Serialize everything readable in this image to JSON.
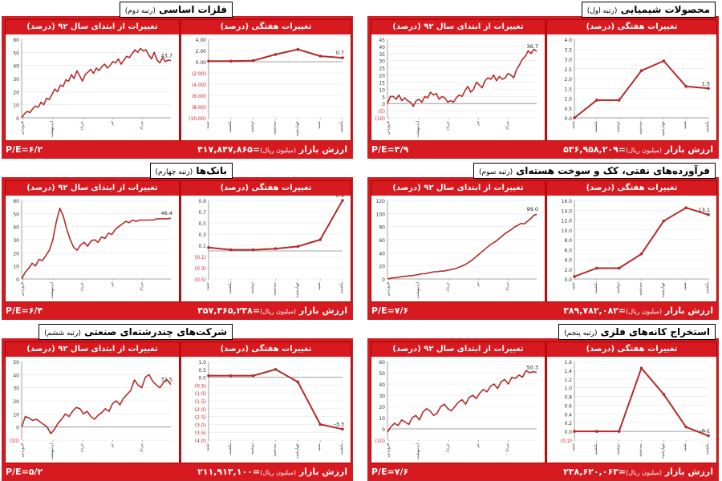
{
  "labels": {
    "ytd_header": "تغییرات از ابتدای سال ۹۲ (درصد)",
    "weekly_header": "تغییرات هفتگی (درصد)",
    "market_value_label": "ارزش بازار",
    "market_value_unit": "(میلیون ریال)",
    "months": [
      "فروردین",
      "اردیبهشت",
      "خرداد",
      "تیر",
      "مرداد"
    ],
    "weekdays": [
      "شنبه",
      "یکشنبه",
      "دوشنبه",
      "سه‌شنبه",
      "چهارشنبه"
    ]
  },
  "colors": {
    "accent": "#d71920",
    "line": "#b52a2a",
    "negative_tick": "#d71920"
  },
  "chart_data": [
    {
      "id": "chemical",
      "title": "محصولات شیمیایی",
      "rank": "(رتبه اول)",
      "pe": "P/E=۴/۹",
      "market_value": "۵۳۶,۹۵۸,۲۰۹",
      "ytd": {
        "type": "line",
        "ylim": [
          -10,
          45
        ],
        "yticks": [
          -10,
          -5,
          0,
          5,
          10,
          15,
          20,
          25,
          30,
          35,
          40,
          45
        ],
        "ytick_labels": [
          "(10)",
          "(5)",
          "0",
          "5",
          "10",
          "15",
          "20",
          "25",
          "30",
          "35",
          "40",
          "45"
        ],
        "values": [
          0,
          5,
          5,
          3,
          6,
          2,
          4,
          2,
          1,
          -2,
          2,
          3,
          1,
          5,
          4,
          8,
          6,
          7,
          3,
          5,
          4,
          1,
          2,
          1,
          4,
          6,
          5,
          9,
          12,
          8,
          10,
          15,
          13,
          11,
          16,
          18,
          17,
          20,
          16,
          19,
          17,
          18,
          21,
          20,
          18,
          24,
          27,
          31,
          33,
          37,
          35,
          38,
          36.7
        ],
        "end_label": "36.7"
      },
      "weekly": {
        "type": "line",
        "ylim": [
          0,
          4.0
        ],
        "yticks": [
          0,
          0.5,
          1.0,
          1.5,
          2.0,
          2.5,
          3.0,
          3.5,
          4.0
        ],
        "ytick_labels": [
          "0.0",
          "0.5",
          "1.0",
          "1.5",
          "2.0",
          "2.5",
          "3.0",
          "3.5",
          "4.0"
        ],
        "values": [
          0,
          0.9,
          0.9,
          2.4,
          2.9,
          1.6,
          1.5
        ],
        "end_label": "1.5"
      }
    },
    {
      "id": "basic-metals",
      "title": "فلزات اساسی",
      "rank": "(رتبه دوم)",
      "pe": "P/E=۶/۲",
      "market_value": "۴۱۷,۸۴۷,۸۶۵",
      "ytd": {
        "type": "line",
        "ylim": [
          0,
          60
        ],
        "yticks": [
          0,
          10,
          20,
          30,
          40,
          50,
          60
        ],
        "ytick_labels": [
          "0",
          "10",
          "20",
          "30",
          "40",
          "50",
          "60"
        ],
        "values": [
          0,
          3,
          5,
          4,
          7,
          9,
          8,
          12,
          10,
          15,
          14,
          18,
          22,
          20,
          25,
          24,
          29,
          28,
          33,
          30,
          36,
          32,
          28,
          33,
          35,
          37,
          34,
          38,
          36,
          39,
          41,
          38,
          40,
          43,
          42,
          45,
          41,
          44,
          47,
          46,
          49,
          52,
          50,
          53,
          51,
          52,
          48,
          45,
          50,
          44,
          42,
          46,
          43,
          44,
          43.7
        ],
        "end_label": "43.7"
      },
      "weekly": {
        "type": "line",
        "ylim": [
          -10,
          4
        ],
        "yticks": [
          -10,
          -8,
          -6,
          -4,
          -2,
          0,
          2,
          4
        ],
        "ytick_labels": [
          "(10.00)",
          "(8.00)",
          "(6.00)",
          "(4.00)",
          "(2.00)",
          "0.00",
          "2.00",
          "4.00"
        ],
        "values": [
          0.1,
          0.1,
          0.2,
          1.3,
          2.2,
          1.0,
          0.7
        ],
        "end_label": "0.7"
      }
    },
    {
      "id": "petroleum",
      "title": "فرآورده‌های نفتی، کک و سوخت هسته‌ای",
      "rank": "(رتبه سوم)",
      "pe": "P/E=۷/۶",
      "market_value": "۳۸۹,۷۸۲,۰۸۲",
      "ytd": {
        "type": "line",
        "ylim": [
          0,
          120
        ],
        "yticks": [
          0,
          20,
          40,
          60,
          80,
          100,
          120
        ],
        "ytick_labels": [
          "0",
          "20",
          "40",
          "60",
          "80",
          "100",
          "120"
        ],
        "values": [
          0,
          1,
          2,
          2,
          3,
          4,
          4,
          5,
          5,
          6,
          7,
          8,
          8,
          9,
          10,
          11,
          11,
          12,
          12,
          13,
          14,
          15,
          16,
          18,
          20,
          22,
          25,
          28,
          32,
          36,
          40,
          44,
          48,
          52,
          55,
          58,
          62,
          66,
          70,
          73,
          76,
          80,
          82,
          85,
          84,
          88,
          92,
          97,
          99.0
        ],
        "end_label": "99.0"
      },
      "weekly": {
        "type": "line",
        "ylim": [
          0,
          16
        ],
        "yticks": [
          0,
          2,
          4,
          6,
          8,
          10,
          12,
          14,
          16
        ],
        "ytick_labels": [
          "0.0",
          "2.0",
          "4.0",
          "6.0",
          "8.0",
          "10.0",
          "12.0",
          "14.0",
          "16.0"
        ],
        "values": [
          0.5,
          2.2,
          2.2,
          5.1,
          11.8,
          14.5,
          13.1
        ],
        "end_label": "13.1"
      }
    },
    {
      "id": "banks",
      "title": "بانک‌ها",
      "rank": "(رتبه چهارم)",
      "pe": "P/E=۶/۴",
      "market_value": "۳۵۷,۳۶۵,۲۳۸",
      "ytd": {
        "type": "line",
        "ylim": [
          0,
          60
        ],
        "yticks": [
          0,
          10,
          20,
          30,
          40,
          50,
          60
        ],
        "ytick_labels": [
          "0",
          "10",
          "20",
          "30",
          "40",
          "50",
          "60"
        ],
        "values": [
          0,
          5,
          8,
          12,
          10,
          15,
          14,
          18,
          22,
          30,
          44,
          54,
          48,
          38,
          30,
          24,
          22,
          26,
          28,
          25,
          29,
          30,
          28,
          32,
          31,
          35,
          34,
          38,
          40,
          42,
          44,
          43,
          45,
          44,
          45,
          45,
          45,
          45,
          45,
          46,
          46,
          46,
          46,
          46.4
        ],
        "end_label": "46.4"
      },
      "weekly": {
        "type": "line",
        "ylim": [
          -0.5,
          0.9
        ],
        "yticks": [
          -0.5,
          -0.3,
          -0.1,
          0.1,
          0.3,
          0.5,
          0.7,
          0.9
        ],
        "ytick_labels": [
          "(0.5)",
          "(0.3)",
          "(0.1)",
          "0.1",
          "0.3",
          "0.5",
          "0.7",
          "0.9"
        ],
        "values": [
          0.06,
          0.02,
          0.02,
          0.04,
          0.08,
          0.2,
          0.9
        ],
        "end_label": "0.9"
      }
    },
    {
      "id": "metal-ores",
      "title": "استخراج کانه‌های فلزی",
      "rank": "(رتبه پنجم)",
      "pe": "P/E=۷/۶",
      "market_value": "۲۳۸,۶۲۰,۰۶۳",
      "ytd": {
        "type": "line",
        "ylim": [
          -10,
          60
        ],
        "yticks": [
          -10,
          0,
          10,
          20,
          30,
          40,
          50,
          60
        ],
        "ytick_labels": [
          "(10)",
          "0",
          "10",
          "20",
          "30",
          "40",
          "50",
          "60"
        ],
        "values": [
          -3,
          2,
          5,
          3,
          8,
          6,
          4,
          10,
          12,
          8,
          15,
          18,
          16,
          12,
          14,
          20,
          22,
          18,
          16,
          20,
          24,
          26,
          22,
          28,
          30,
          27,
          32,
          35,
          33,
          38,
          40,
          36,
          42,
          44,
          40,
          46,
          45,
          48,
          46,
          52,
          50,
          51,
          50.3
        ],
        "end_label": "50.3"
      },
      "weekly": {
        "type": "line",
        "ylim": [
          -0.2,
          1.6
        ],
        "yticks": [
          -0.2,
          0,
          0.2,
          0.4,
          0.6,
          0.8,
          1.0,
          1.2,
          1.4,
          1.6
        ],
        "ytick_labels": [
          "(0.2)",
          "0.0",
          "0.2",
          "0.4",
          "0.6",
          "0.8",
          "1.0",
          "1.2",
          "1.4",
          "1.6"
        ],
        "values": [
          0.0,
          0.0,
          0.0,
          1.45,
          0.85,
          0.1,
          -0.1
        ],
        "end_label": "-0.1"
      }
    },
    {
      "id": "multi-discipline",
      "title": "شرکت‌های چندرشته‌ای صنعتی",
      "rank": "(رتبه ششم)",
      "pe": "P/E=۵/۲",
      "market_value": "۲۱۱,۹۱۳,۱۰۰",
      "ytd": {
        "type": "line",
        "ylim": [
          -10,
          50
        ],
        "yticks": [
          -10,
          0,
          10,
          20,
          30,
          40,
          50
        ],
        "ytick_labels": [
          "(10)",
          "0",
          "10",
          "20",
          "30",
          "40",
          "50"
        ],
        "values": [
          0,
          8,
          7,
          5,
          6,
          4,
          2,
          0,
          -5,
          -2,
          3,
          6,
          10,
          8,
          12,
          15,
          14,
          10,
          12,
          8,
          6,
          9,
          11,
          14,
          12,
          18,
          20,
          17,
          22,
          25,
          28,
          36,
          32,
          30,
          38,
          40,
          35,
          32,
          30,
          34,
          36,
          32.5
        ],
        "end_label": "32.5"
      },
      "weekly": {
        "type": "line",
        "ylim": [
          -4.0,
          1.0
        ],
        "yticks": [
          -4.0,
          -3.5,
          -3.0,
          -2.5,
          -2.0,
          -1.5,
          -1.0,
          -0.5,
          0.0,
          0.5,
          1.0
        ],
        "ytick_labels": [
          "(4.0)",
          "(3.5)",
          "(3.0)",
          "(2.5)",
          "(2.0)",
          "(1.5)",
          "(1.0)",
          "(0.5)",
          "0.0",
          "0.5",
          "1.0"
        ],
        "values": [
          0.1,
          0.1,
          0.1,
          0.5,
          -0.3,
          -3.0,
          -3.3
        ],
        "end_label": "-3.3"
      }
    }
  ]
}
